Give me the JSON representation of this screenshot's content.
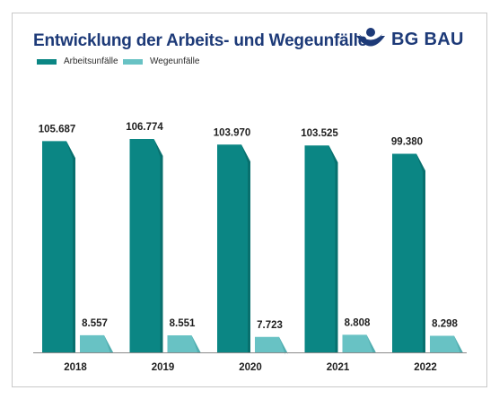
{
  "title": "Entwicklung der Arbeits- und Wegeunfälle",
  "logo_text": "BG BAU",
  "colors": {
    "arbeitsunfaelle": "#0b8684",
    "arbeitsunfaelle_dark": "#075e5c",
    "wegeunfaelle": "#68c2c4",
    "wegeunfaelle_dark": "#3f9ea1",
    "brand": "#1d3a78"
  },
  "legend": [
    {
      "label": "Arbeitsunfälle"
    },
    {
      "label": "Wegeunfälle"
    }
  ],
  "chart_data": {
    "type": "bar",
    "categories": [
      "2018",
      "2019",
      "2020",
      "2021",
      "2022"
    ],
    "series": [
      {
        "name": "Arbeitsunfälle",
        "values": [
          105687,
          106774,
          103970,
          103525,
          99380
        ],
        "labels": [
          "105.687",
          "106.774",
          "103.970",
          "103.525",
          "99.380"
        ]
      },
      {
        "name": "Wegeunfälle",
        "values": [
          8557,
          8551,
          7723,
          8808,
          8298
        ],
        "labels": [
          "8.557",
          "8.551",
          "7.723",
          "8.808",
          "8.298"
        ]
      }
    ],
    "ylim": [
      0,
      106774
    ],
    "grid": false,
    "legend_position": "top-left"
  }
}
